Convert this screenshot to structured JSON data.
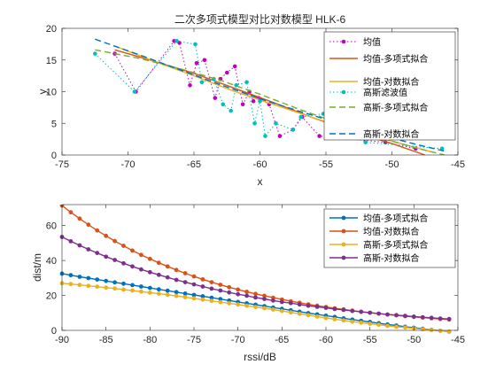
{
  "chart_data": [
    {
      "type": "line",
      "title": "二次多项式模型对比对数模型 HLK-6",
      "xlabel": "x",
      "ylabel": "y",
      "xlim": [
        -75,
        -45
      ],
      "ylim": [
        0,
        20
      ],
      "xticks": [
        -75,
        -70,
        -65,
        -60,
        -55,
        -50,
        -45
      ],
      "yticks": [
        0,
        5,
        10,
        15,
        20
      ],
      "legend_position": "top-right",
      "series": [
        {
          "name": "均值",
          "style": "dotted-markers",
          "color": "#bf00bf",
          "points": [
            [
              -71,
              16
            ],
            [
              -69.4,
              10
            ],
            [
              -66.5,
              18
            ],
            [
              -66.1,
              17.7
            ],
            [
              -65.3,
              11
            ],
            [
              -64.8,
              14.5
            ],
            [
              -64.2,
              15
            ],
            [
              -63.4,
              9
            ],
            [
              -63,
              12
            ],
            [
              -62.5,
              13
            ],
            [
              -61.9,
              14
            ],
            [
              -61.3,
              8
            ],
            [
              -60.8,
              10
            ],
            [
              -60.5,
              8.5
            ],
            [
              -60.1,
              9
            ],
            [
              -59.3,
              8
            ],
            [
              -58.5,
              3
            ],
            [
              -57.5,
              4
            ],
            [
              -56.8,
              6
            ],
            [
              -55.5,
              3
            ],
            [
              -50.5,
              2
            ],
            [
              -48.2,
              1
            ]
          ]
        },
        {
          "name": "均值-多项式拟合",
          "style": "solid",
          "color": "#d95319",
          "points": [
            [
              -71,
              16.6
            ],
            [
              -68,
              14.8
            ],
            [
              -65,
              12.9
            ],
            [
              -62,
              10.6
            ],
            [
              -59,
              8.3
            ],
            [
              -56,
              5.9
            ],
            [
              -53,
              3.7
            ],
            [
              -50,
              1.8
            ],
            [
              -47.5,
              0
            ]
          ]
        },
        {
          "name": "均值-对数拟合",
          "style": "solid",
          "color": "#edb120",
          "points": [
            [
              -71,
              17.2
            ],
            [
              -68,
              14.8
            ],
            [
              -65,
              12.5
            ],
            [
              -62,
              10.1
            ],
            [
              -59,
              8
            ],
            [
              -56,
              5.9
            ],
            [
              -53,
              4
            ],
            [
              -50,
              2.2
            ],
            [
              -47,
              0.5
            ]
          ]
        },
        {
          "name": "高斯滤波值",
          "style": "dotted-markers",
          "color": "#00bfbf",
          "points": [
            [
              -72.5,
              16
            ],
            [
              -69.5,
              10
            ],
            [
              -66.3,
              18
            ],
            [
              -64.9,
              17.5
            ],
            [
              -64.4,
              11.5
            ],
            [
              -63.5,
              12
            ],
            [
              -62.8,
              8
            ],
            [
              -62.2,
              7
            ],
            [
              -61.8,
              11
            ],
            [
              -61,
              11.5
            ],
            [
              -60.4,
              5
            ],
            [
              -60,
              8.5
            ],
            [
              -59.6,
              3
            ],
            [
              -58.8,
              5
            ],
            [
              -57.5,
              4
            ],
            [
              -56.9,
              6
            ],
            [
              -55.2,
              6.5
            ],
            [
              -52,
              2
            ],
            [
              -46.2,
              1
            ]
          ]
        },
        {
          "name": "高斯-多项式拟合",
          "style": "dashed",
          "color": "#77ac30",
          "points": [
            [
              -72.5,
              16.6
            ],
            [
              -69,
              15.2
            ],
            [
              -66,
              13.6
            ],
            [
              -63,
              11.8
            ],
            [
              -60,
              9.6
            ],
            [
              -57,
              7.2
            ],
            [
              -54,
              5
            ],
            [
              -51,
              2.8
            ],
            [
              -48,
              1
            ],
            [
              -46,
              0
            ]
          ]
        },
        {
          "name": "高斯-对数拟合",
          "style": "dashed",
          "color": "#0072bd",
          "points": [
            [
              -72.5,
              18.3
            ],
            [
              -69,
              15.7
            ],
            [
              -66,
              13.4
            ],
            [
              -63,
              11.1
            ],
            [
              -60,
              8.9
            ],
            [
              -57,
              6.9
            ],
            [
              -54,
              5
            ],
            [
              -51,
              3.2
            ],
            [
              -48,
              1.6
            ],
            [
              -46,
              0.6
            ]
          ]
        }
      ]
    },
    {
      "type": "line",
      "title": "",
      "xlabel": "rssi/dB",
      "ylabel": "dist/m",
      "xlim": [
        -90,
        -45
      ],
      "ylim": [
        0,
        72
      ],
      "xticks": [
        -90,
        -85,
        -80,
        -75,
        -70,
        -65,
        -60,
        -55,
        -50,
        -45
      ],
      "yticks": [
        0,
        20,
        40,
        60
      ],
      "legend_position": "top-right",
      "x": [
        -90,
        -89,
        -88,
        -87,
        -86,
        -85,
        -84,
        -83,
        -82,
        -81,
        -80,
        -79,
        -78,
        -77,
        -76,
        -75,
        -74,
        -73,
        -72,
        -71,
        -70,
        -69,
        -68,
        -67,
        -66,
        -65,
        -64,
        -63,
        -62,
        -61,
        -60,
        -59,
        -58,
        -57,
        -56,
        -55,
        -54,
        -53,
        -52,
        -51,
        -50,
        -49,
        -48,
        -47,
        -46
      ],
      "series": [
        {
          "name": "均值-多项式拟合",
          "color": "#0072bd",
          "values": [
            32.5,
            31.6,
            30.7,
            29.9,
            29.1,
            28.3,
            27.5,
            26.7,
            25.9,
            25.1,
            24.3,
            23.5,
            22.7,
            21.9,
            21.1,
            20.3,
            19.5,
            18.7,
            17.9,
            17.1,
            16.3,
            15.5,
            14.7,
            13.9,
            13.1,
            12.3,
            11.5,
            10.7,
            9.9,
            9.2,
            8.4,
            7.7,
            6.9,
            6.2,
            5.5,
            4.8,
            4.1,
            3.4,
            2.8,
            2.1,
            1.5,
            0.9,
            0.3,
            -0.2,
            -0.7
          ]
        },
        {
          "name": "均值-对数拟合",
          "color": "#d95319",
          "values": [
            71.5,
            67.6,
            64,
            60.5,
            57.2,
            54.1,
            51.1,
            48.4,
            45.7,
            43.2,
            40.9,
            38.7,
            36.6,
            34.6,
            32.7,
            30.9,
            29.2,
            27.6,
            26.1,
            24.7,
            23.4,
            22.1,
            20.9,
            19.8,
            18.7,
            17.7,
            16.7,
            15.8,
            14.9,
            14.1,
            13.4,
            12.6,
            12,
            11.3,
            10.7,
            10.1,
            9.6,
            9.1,
            8.6,
            8.1,
            7.7,
            7.3,
            6.9,
            6.5,
            6.2
          ]
        },
        {
          "name": "高斯-多项式拟合",
          "color": "#edb120",
          "values": [
            27,
            26.5,
            26,
            25.5,
            25,
            24.5,
            24,
            23.4,
            22.8,
            22.2,
            21.6,
            21,
            20.4,
            19.7,
            19,
            18.3,
            17.6,
            16.9,
            16.2,
            15.5,
            14.8,
            14.1,
            13.4,
            12.7,
            11.9,
            11.1,
            10.3,
            9.5,
            8.7,
            7.9,
            7.1,
            6.4,
            5.7,
            5,
            4.4,
            3.8,
            3.2,
            2.6,
            2.1,
            1.6,
            1.1,
            0.6,
            0.2,
            -0.2,
            -0.6
          ]
        },
        {
          "name": "高斯-对数拟合",
          "color": "#7e2f8e",
          "values": [
            53.5,
            51,
            48.7,
            46.4,
            44.3,
            42.2,
            40.3,
            38.4,
            36.6,
            34.9,
            33.3,
            31.8,
            30.3,
            28.9,
            27.6,
            26.3,
            25.1,
            23.9,
            22.8,
            21.7,
            20.7,
            19.8,
            18.8,
            18,
            17.1,
            16.3,
            15.6,
            14.8,
            14.1,
            13.5,
            12.9,
            12.2,
            11.7,
            11.1,
            10.6,
            10.1,
            9.6,
            9.1,
            8.7,
            8.3,
            7.9,
            7.5,
            7.2,
            6.8,
            6.5
          ]
        }
      ]
    }
  ]
}
